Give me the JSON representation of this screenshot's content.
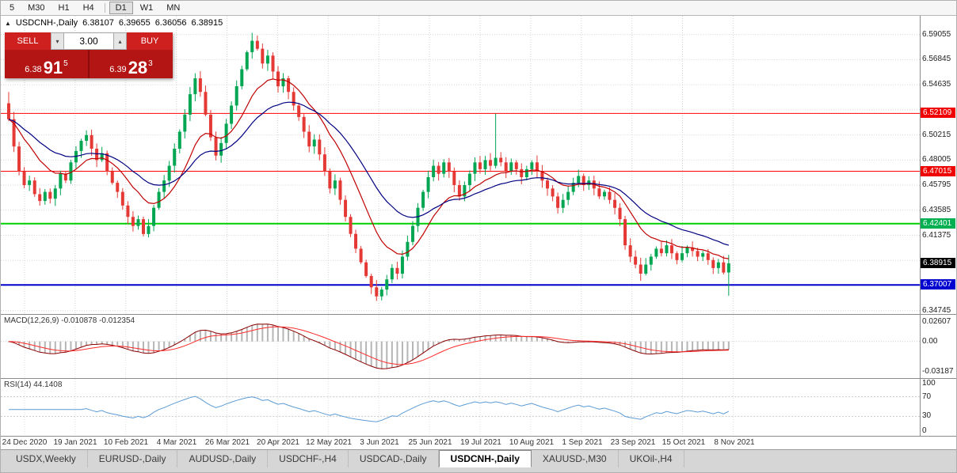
{
  "toolbar": {
    "timeframes": [
      {
        "label": "5"
      },
      {
        "label": "M30"
      },
      {
        "label": "H1"
      },
      {
        "label": "H4",
        "sep": true
      },
      {
        "label": "D1",
        "active": true
      },
      {
        "label": "W1"
      },
      {
        "label": "MN"
      }
    ]
  },
  "chart": {
    "header": {
      "arrow": "▲",
      "title": "USDCNH-,Daily",
      "open": "6.38107",
      "high": "6.39655",
      "low": "6.36056",
      "close": "6.38915"
    }
  },
  "trade": {
    "sell_label": "SELL",
    "buy_label": "BUY",
    "volume": "3.00",
    "spin_down": "▾",
    "spin_up": "▴",
    "sell_price": {
      "small": "6.38",
      "big": "91",
      "sup": "5"
    },
    "buy_price": {
      "small": "6.39",
      "big": "28",
      "sup": "3"
    }
  },
  "price_axis": {
    "ticks": [
      {
        "price": 6.59055,
        "label": "6.59055"
      },
      {
        "price": 6.56845,
        "label": "6.56845"
      },
      {
        "price": 6.54635,
        "label": "6.54635"
      },
      {
        "price": 6.50215,
        "label": "6.50215"
      },
      {
        "price": 6.48005,
        "label": "6.48005"
      },
      {
        "price": 6.45795,
        "label": "6.45795"
      },
      {
        "price": 6.43585,
        "label": "6.43585"
      },
      {
        "price": 6.41375,
        "label": "6.41375"
      },
      {
        "price": 6.34745,
        "label": "6.34745"
      }
    ],
    "badges": [
      {
        "price": 6.52109,
        "label": "6.52109",
        "bg": "#f00000"
      },
      {
        "price": 6.47015,
        "label": "6.47015",
        "bg": "#f00000"
      },
      {
        "price": 6.42401,
        "label": "6.42401",
        "bg": "#00b050"
      },
      {
        "price": 6.38915,
        "label": "6.38915",
        "bg": "#000000"
      },
      {
        "price": 6.37007,
        "label": "6.37007",
        "bg": "#0000d0"
      }
    ]
  },
  "macd": {
    "label": "MACD(12,26,9) -0.010878 -0.012354",
    "axis": [
      "0.02607",
      "0.00",
      "-0.03187"
    ]
  },
  "rsi": {
    "label": "RSI(14) 44.1408",
    "axis": [
      "100",
      "70",
      "30",
      "0"
    ]
  },
  "date_axis": [
    "24 Dec 2020",
    "19 Jan 2021",
    "10 Feb 2021",
    "4 Mar 2021",
    "26 Mar 2021",
    "20 Apr 2021",
    "12 May 2021",
    "3 Jun 2021",
    "25 Jun 2021",
    "19 Jul 2021",
    "10 Aug 2021",
    "1 Sep 2021",
    "23 Sep 2021",
    "15 Oct 2021",
    "8 Nov 2021"
  ],
  "tabs": [
    {
      "label": "USDX,Weekly",
      "active": false
    },
    {
      "label": "EURUSD-,Daily",
      "active": false
    },
    {
      "label": "AUDUSD-,Daily",
      "active": false
    },
    {
      "label": "USDCHF-,H4",
      "active": false
    },
    {
      "label": "USDCAD-,Daily",
      "active": false
    },
    {
      "label": "USDCNH-,Daily",
      "active": true
    },
    {
      "label": "XAUUSD-,M30",
      "active": false
    },
    {
      "label": "UKOil-,H4",
      "active": false
    }
  ],
  "chart_data": {
    "type": "candlestick",
    "symbol": "USDCNH-",
    "timeframe": "Daily",
    "title": "USDCNH-,Daily",
    "ylim": [
      6.3445,
      6.607
    ],
    "last_candle": {
      "open": 6.38107,
      "high": 6.39655,
      "low": 6.36056,
      "close": 6.38915
    },
    "first_open": 6.53,
    "closes": [
      6.516,
      6.492,
      6.47,
      6.458,
      6.462,
      6.45,
      6.444,
      6.452,
      6.446,
      6.455,
      6.468,
      6.462,
      6.478,
      6.488,
      6.497,
      6.502,
      6.49,
      6.48,
      6.486,
      6.47,
      6.46,
      6.452,
      6.44,
      6.43,
      6.422,
      6.428,
      6.415,
      6.422,
      6.438,
      6.452,
      6.462,
      6.475,
      6.49,
      6.505,
      6.52,
      6.538,
      6.552,
      6.54,
      6.52,
      6.5,
      6.484,
      6.495,
      6.512,
      6.528,
      6.545,
      6.56,
      6.575,
      6.585,
      6.578,
      6.565,
      6.572,
      6.558,
      6.545,
      6.552,
      6.54,
      6.528,
      6.518,
      6.505,
      6.492,
      6.498,
      6.485,
      6.47,
      6.455,
      6.462,
      6.445,
      6.43,
      6.415,
      6.402,
      6.39,
      6.378,
      6.368,
      6.36,
      6.366,
      6.375,
      6.385,
      6.38,
      6.395,
      6.408,
      6.422,
      6.438,
      6.452,
      6.465,
      6.475,
      6.468,
      6.478,
      6.47,
      6.458,
      6.448,
      6.458,
      6.468,
      6.478,
      6.472,
      6.48,
      6.475,
      6.482,
      6.478,
      6.47,
      6.478,
      6.472,
      6.465,
      6.472,
      6.478,
      6.47,
      6.462,
      6.455,
      6.448,
      6.438,
      6.445,
      6.452,
      6.46,
      6.466,
      6.458,
      6.462,
      6.455,
      6.448,
      6.452,
      6.445,
      6.438,
      6.428,
      6.405,
      6.395,
      6.388,
      6.38,
      6.388,
      6.395,
      6.402,
      6.398,
      6.405,
      6.398,
      6.392,
      6.398,
      6.403,
      6.4,
      6.395,
      6.398,
      6.392,
      6.385,
      6.39,
      6.381,
      6.38915
    ],
    "overrides": [
      {
        "i": 0,
        "high": 6.54
      },
      {
        "i": 47,
        "high": 6.592
      },
      {
        "i": 71,
        "low": 6.356
      },
      {
        "i": 94,
        "high": 6.521
      },
      {
        "i": 139,
        "open": 6.38107,
        "high": 6.39655,
        "low": 6.36056
      }
    ],
    "grid_prices": [
      6.34745,
      6.36955,
      6.39165,
      6.41375,
      6.43585,
      6.45795,
      6.48005,
      6.50215,
      6.52425,
      6.54635,
      6.56845,
      6.59055
    ],
    "hlines": [
      {
        "price": 6.52109,
        "color": "#ff0000",
        "width": 1
      },
      {
        "price": 6.47015,
        "color": "#ff0000",
        "width": 1
      },
      {
        "price": 6.42401,
        "color": "#00d000",
        "width": 2
      },
      {
        "price": 6.37007,
        "color": "#0000cc",
        "width": 2
      }
    ],
    "indicators": [
      {
        "name": "MACD",
        "params": [
          12,
          26,
          9
        ],
        "current_values": [
          "-0.010878",
          "-0.012354"
        ]
      },
      {
        "name": "RSI",
        "params": [
          14
        ],
        "current_value": "44.1408"
      }
    ],
    "moving_averages": [
      {
        "period": 12,
        "color_key": "ma_fast"
      },
      {
        "period": 26,
        "color_key": "ma_slow"
      }
    ],
    "colors": {
      "up": "#00a651",
      "down": "#e53935",
      "ma_fast": "#c00000",
      "ma_slow": "#000080",
      "macd_hist": "#b5b5b5",
      "macd_line": "#8b0000",
      "macd_signal": "#ff2a2a",
      "rsi": "#5b9bd5",
      "grid": "#d4d4d4"
    }
  }
}
